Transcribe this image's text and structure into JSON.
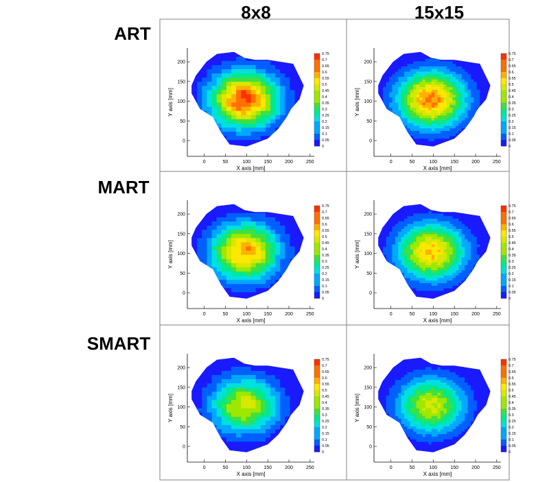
{
  "columns": [
    "8x8",
    "15x15"
  ],
  "rows": [
    "ART",
    "MART",
    "SMART"
  ],
  "colors": {
    "grid_border": "#808080",
    "colormap": [
      "#1a1aff",
      "#0060ff",
      "#00a8ff",
      "#00e0e0",
      "#00e890",
      "#40e040",
      "#9ee800",
      "#d8e800",
      "#ffe800",
      "#ffb000",
      "#ff7000",
      "#ff3000",
      "#e01010"
    ]
  },
  "chart_data": [
    {
      "type": "heatmap",
      "row": "ART",
      "column": "8x8",
      "grid": "8x8",
      "peak_value": 0.75,
      "xlabel": "X axis [mm]",
      "ylabel": "Y axis [mm]",
      "xlim": [
        -40,
        260
      ],
      "ylim": [
        -40,
        235
      ],
      "xticks": [
        0,
        50,
        100,
        150,
        200,
        250
      ],
      "yticks": [
        0,
        50,
        100,
        150,
        200
      ],
      "colorbar": {
        "min": 0,
        "max": 0.75,
        "step": 0.05,
        "labels": [
          "0.75",
          "0.7",
          "0.65",
          "0.6",
          "0.55",
          "0.5",
          "0.45",
          "0.4",
          "0.35",
          "0.3",
          "0.25",
          "0.2",
          "0.15",
          "0.1",
          "0.05",
          "0"
        ]
      }
    },
    {
      "type": "heatmap",
      "row": "ART",
      "column": "15x15",
      "grid": "15x15",
      "peak_value": 0.7,
      "xlabel": "X axis [mm]",
      "ylabel": "Y axis [mm]",
      "xlim": [
        -40,
        260
      ],
      "ylim": [
        -40,
        235
      ],
      "xticks": [
        0,
        50,
        100,
        150,
        200,
        250
      ],
      "yticks": [
        0,
        50,
        100,
        150,
        200
      ],
      "colorbar": {
        "min": 0,
        "max": 0.75,
        "step": 0.05,
        "labels": [
          "0.75",
          "0.7",
          "0.65",
          "0.6",
          "0.55",
          "0.5",
          "0.45",
          "0.4",
          "0.35",
          "0.3",
          "0.25",
          "0.2",
          "0.15",
          "0.1",
          "0.05",
          "0"
        ]
      }
    },
    {
      "type": "heatmap",
      "row": "MART",
      "column": "8x8",
      "grid": "8x8",
      "peak_value": 0.65,
      "xlabel": "X axis [mm]",
      "ylabel": "Y axis [mm]",
      "xlim": [
        -40,
        260
      ],
      "ylim": [
        -40,
        235
      ],
      "xticks": [
        0,
        50,
        100,
        150,
        200,
        250
      ],
      "yticks": [
        0,
        50,
        100,
        150,
        200
      ],
      "colorbar": {
        "min": 0,
        "max": 0.75,
        "step": 0.05,
        "labels": [
          "0.75",
          "0.7",
          "0.65",
          "0.6",
          "0.55",
          "0.5",
          "0.45",
          "0.4",
          "0.35",
          "0.3",
          "0.25",
          "0.2",
          "0.15",
          "0.1",
          "0.05",
          "0"
        ]
      }
    },
    {
      "type": "heatmap",
      "row": "MART",
      "column": "15x15",
      "grid": "15x15",
      "peak_value": 0.62,
      "xlabel": "X axis [mm]",
      "ylabel": "Y axis [mm]",
      "xlim": [
        -40,
        260
      ],
      "ylim": [
        -40,
        235
      ],
      "xticks": [
        0,
        50,
        100,
        150,
        200,
        250
      ],
      "yticks": [
        0,
        50,
        100,
        150,
        200
      ],
      "colorbar": {
        "min": 0,
        "max": 0.75,
        "step": 0.05,
        "labels": [
          "0.75",
          "0.7",
          "0.65",
          "0.6",
          "0.55",
          "0.5",
          "0.45",
          "0.4",
          "0.35",
          "0.3",
          "0.25",
          "0.2",
          "0.15",
          "0.1",
          "0.05",
          "0"
        ]
      }
    },
    {
      "type": "heatmap",
      "row": "SMART",
      "column": "8x8",
      "grid": "8x8",
      "peak_value": 0.5,
      "xlabel": "X axis [mm]",
      "ylabel": "Y axis [mm]",
      "xlim": [
        -40,
        260
      ],
      "ylim": [
        -40,
        235
      ],
      "xticks": [
        0,
        50,
        100,
        150,
        200,
        250
      ],
      "yticks": [
        0,
        50,
        100,
        150,
        200
      ],
      "colorbar": {
        "min": 0,
        "max": 0.75,
        "step": 0.05,
        "labels": [
          "0.75",
          "0.7",
          "0.65",
          "0.6",
          "0.55",
          "0.5",
          "0.45",
          "0.4",
          "0.35",
          "0.3",
          "0.25",
          "0.2",
          "0.15",
          "0.1",
          "0.05",
          "0"
        ]
      }
    },
    {
      "type": "heatmap",
      "row": "SMART",
      "column": "15x15",
      "grid": "15x15",
      "peak_value": 0.5,
      "xlabel": "X axis [mm]",
      "ylabel": "Y axis [mm]",
      "xlim": [
        -40,
        260
      ],
      "ylim": [
        -40,
        235
      ],
      "xticks": [
        0,
        50,
        100,
        150,
        200,
        250
      ],
      "yticks": [
        0,
        50,
        100,
        150,
        200
      ],
      "colorbar": {
        "min": 0,
        "max": 0.75,
        "step": 0.05,
        "labels": [
          "0.75",
          "0.7",
          "0.65",
          "0.6",
          "0.55",
          "0.5",
          "0.45",
          "0.4",
          "0.35",
          "0.3",
          "0.25",
          "0.2",
          "0.15",
          "0.1",
          "0.05",
          "0"
        ]
      }
    }
  ]
}
